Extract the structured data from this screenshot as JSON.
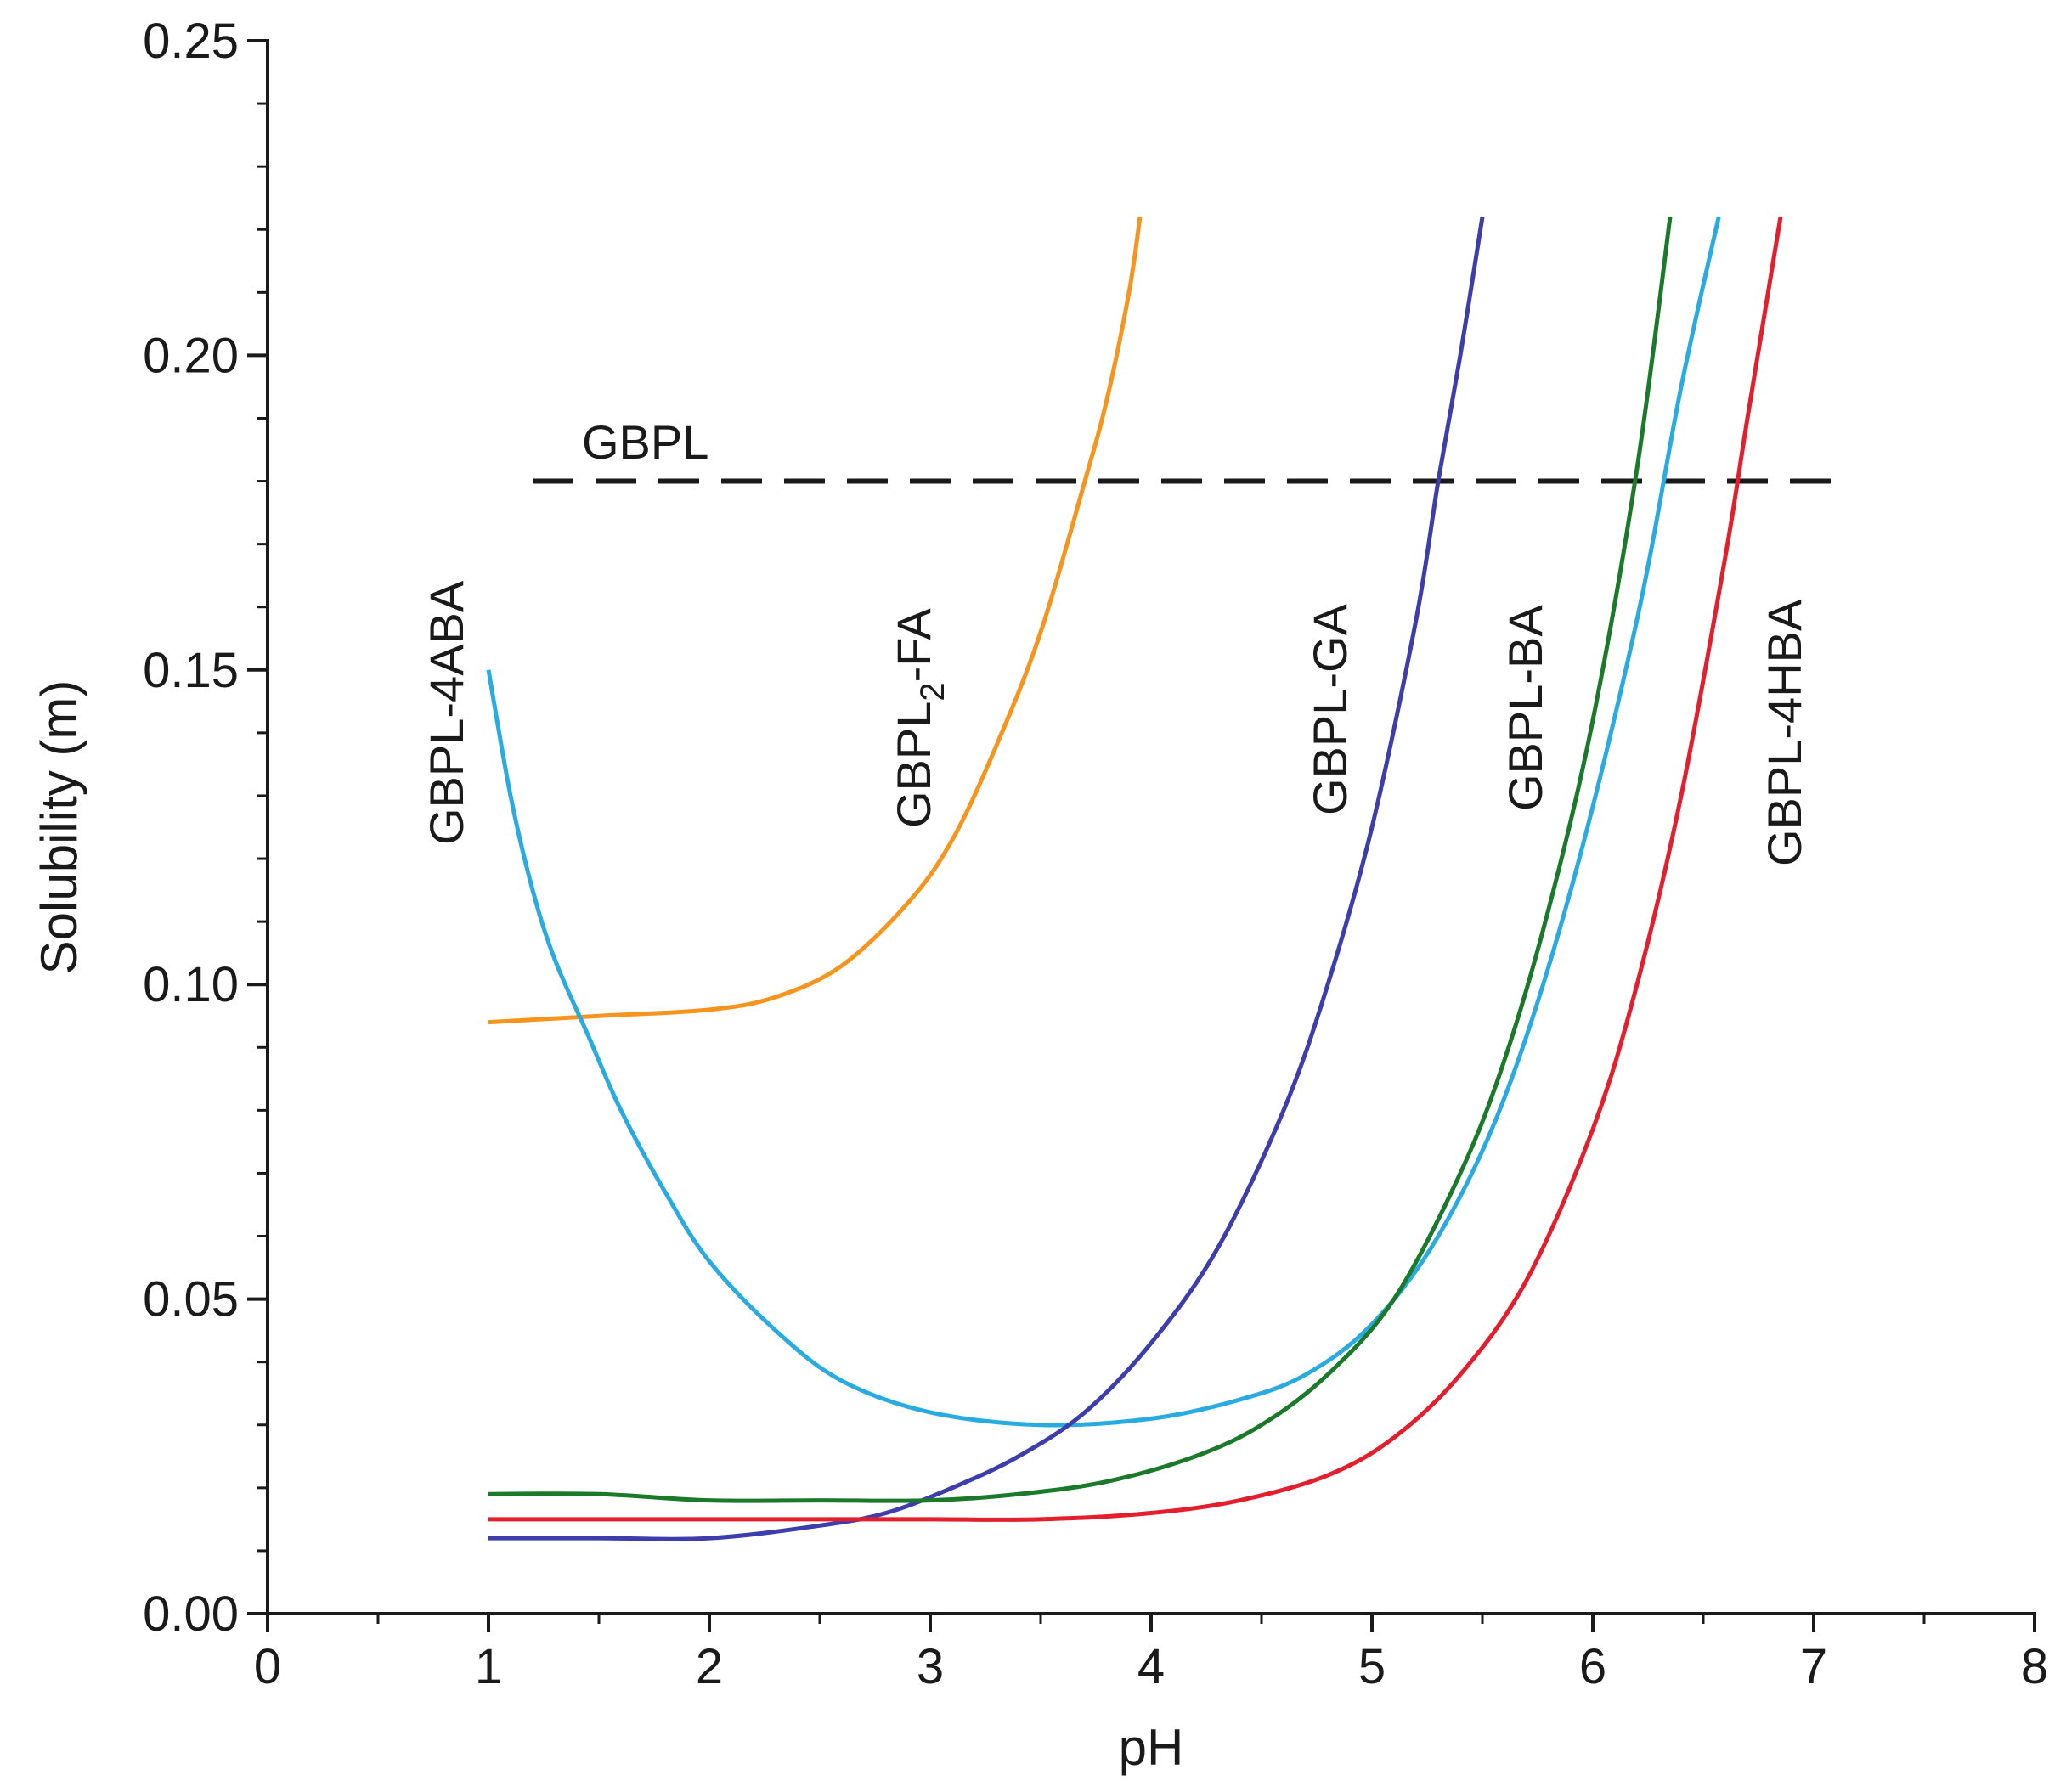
{
  "chart_data": {
    "type": "line",
    "title": "",
    "xlabel": "pH",
    "ylabel": "Solubility (m)",
    "xlim": [
      0,
      8
    ],
    "ylim": [
      0,
      0.25
    ],
    "x_ticks": [
      "0",
      "1",
      "2",
      "3",
      "4",
      "5",
      "6",
      "7",
      "8"
    ],
    "y_ticks": [
      "0.00",
      "0.05",
      "0.10",
      "0.15",
      "0.20",
      "0.25"
    ],
    "grid": false,
    "legend": "none (direct labels)",
    "series": [
      {
        "name": "GBPL",
        "label": "GBPL",
        "color": "#1a1a1a",
        "dashed": true,
        "x": [
          1.2,
          7.1
        ],
        "y": [
          0.18,
          0.18
        ]
      },
      {
        "name": "GBPL2-FA",
        "label_main": "GBPL",
        "label_sub": "2",
        "label_tail": "-FA",
        "color": "#f7941d",
        "dashed": false,
        "x": [
          1.0,
          1.5,
          2.0,
          2.3,
          2.6,
          2.9,
          3.1,
          3.3,
          3.5,
          3.7,
          3.8,
          3.9,
          3.95
        ],
        "y": [
          0.094,
          0.095,
          0.096,
          0.098,
          0.103,
          0.113,
          0.123,
          0.138,
          0.156,
          0.18,
          0.193,
          0.21,
          0.222
        ]
      },
      {
        "name": "GBPL-4ABA",
        "label": "GBPL-4ABA",
        "color": "#29abe2",
        "dashed": false,
        "x": [
          1.0,
          1.1,
          1.2,
          1.3,
          1.45,
          1.6,
          1.8,
          2.0,
          2.3,
          2.6,
          3.0,
          3.5,
          4.0,
          4.4,
          4.7,
          5.0,
          5.3,
          5.6,
          5.9,
          6.2,
          6.4,
          6.57
        ],
        "y": [
          0.15,
          0.13,
          0.115,
          0.104,
          0.092,
          0.08,
          0.067,
          0.056,
          0.045,
          0.037,
          0.032,
          0.03,
          0.031,
          0.034,
          0.038,
          0.046,
          0.06,
          0.082,
          0.115,
          0.158,
          0.195,
          0.222
        ]
      },
      {
        "name": "GBPL-GA",
        "label": "GBPL-GA",
        "color": "#3d3dab",
        "dashed": false,
        "x": [
          1.0,
          1.5,
          2.0,
          2.5,
          2.8,
          3.1,
          3.4,
          3.7,
          4.0,
          4.3,
          4.6,
          4.8,
          5.0,
          5.2,
          5.3,
          5.4,
          5.5
        ],
        "y": [
          0.012,
          0.012,
          0.012,
          0.014,
          0.016,
          0.02,
          0.025,
          0.032,
          0.043,
          0.058,
          0.08,
          0.1,
          0.125,
          0.158,
          0.18,
          0.2,
          0.222
        ]
      },
      {
        "name": "GBPL-BA",
        "label": "GBPL-BA",
        "color": "#1a7a2a",
        "dashed": false,
        "x": [
          1.0,
          1.5,
          2.0,
          2.5,
          3.0,
          3.4,
          3.8,
          4.2,
          4.5,
          4.8,
          5.1,
          5.4,
          5.6,
          5.8,
          6.0,
          6.2,
          6.35
        ],
        "y": [
          0.019,
          0.019,
          0.018,
          0.018,
          0.018,
          0.019,
          0.021,
          0.025,
          0.03,
          0.038,
          0.05,
          0.07,
          0.088,
          0.112,
          0.142,
          0.182,
          0.222
        ]
      },
      {
        "name": "GBPL-4HBA",
        "label": "GBPL-4HBA",
        "color": "#e31e2d",
        "dashed": false,
        "x": [
          1.0,
          1.5,
          2.0,
          2.5,
          3.0,
          3.5,
          4.0,
          4.4,
          4.8,
          5.1,
          5.4,
          5.7,
          6.0,
          6.2,
          6.4,
          6.6,
          6.7,
          6.85
        ],
        "y": [
          0.015,
          0.015,
          0.015,
          0.015,
          0.015,
          0.015,
          0.016,
          0.018,
          0.022,
          0.028,
          0.038,
          0.053,
          0.077,
          0.1,
          0.13,
          0.168,
          0.19,
          0.222
        ]
      }
    ]
  }
}
